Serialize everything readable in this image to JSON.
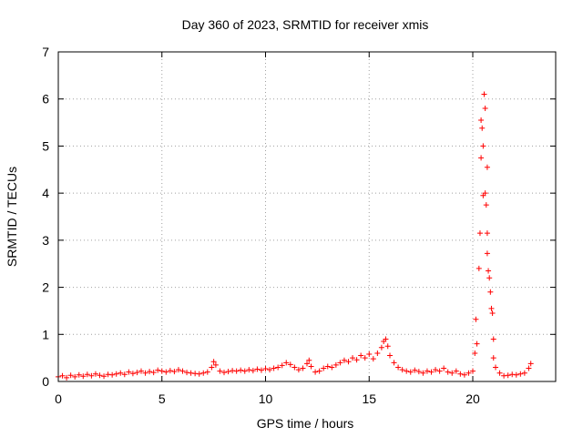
{
  "chart_data": {
    "type": "scatter",
    "title": "Day 360 of 2023, SRMTID for receiver xmis",
    "xlabel": "GPS time / hours",
    "ylabel": "SRMTID / TECUs",
    "xlim": [
      0,
      24
    ],
    "ylim": [
      0,
      7
    ],
    "xticks": [
      0,
      5,
      10,
      15,
      20
    ],
    "yticks": [
      0,
      1,
      2,
      3,
      4,
      5,
      6,
      7
    ],
    "grid": true,
    "marker": "plus",
    "color": "#ff0000",
    "series": [
      {
        "name": "SRMTID",
        "points": [
          [
            0.0,
            0.1
          ],
          [
            0.2,
            0.12
          ],
          [
            0.4,
            0.08
          ],
          [
            0.6,
            0.13
          ],
          [
            0.8,
            0.1
          ],
          [
            1.0,
            0.14
          ],
          [
            1.2,
            0.11
          ],
          [
            1.4,
            0.15
          ],
          [
            1.6,
            0.12
          ],
          [
            1.8,
            0.16
          ],
          [
            2.0,
            0.13
          ],
          [
            2.2,
            0.11
          ],
          [
            2.4,
            0.15
          ],
          [
            2.6,
            0.14
          ],
          [
            2.8,
            0.16
          ],
          [
            3.0,
            0.18
          ],
          [
            3.2,
            0.15
          ],
          [
            3.4,
            0.2
          ],
          [
            3.6,
            0.17
          ],
          [
            3.8,
            0.19
          ],
          [
            4.0,
            0.22
          ],
          [
            4.2,
            0.18
          ],
          [
            4.4,
            0.21
          ],
          [
            4.6,
            0.19
          ],
          [
            4.8,
            0.24
          ],
          [
            5.0,
            0.22
          ],
          [
            5.2,
            0.2
          ],
          [
            5.4,
            0.23
          ],
          [
            5.6,
            0.21
          ],
          [
            5.8,
            0.25
          ],
          [
            6.0,
            0.22
          ],
          [
            6.2,
            0.19
          ],
          [
            6.4,
            0.18
          ],
          [
            6.6,
            0.17
          ],
          [
            6.8,
            0.16
          ],
          [
            7.0,
            0.18
          ],
          [
            7.2,
            0.2
          ],
          [
            7.4,
            0.3
          ],
          [
            7.5,
            0.42
          ],
          [
            7.6,
            0.35
          ],
          [
            7.8,
            0.22
          ],
          [
            8.0,
            0.19
          ],
          [
            8.2,
            0.21
          ],
          [
            8.4,
            0.23
          ],
          [
            8.6,
            0.22
          ],
          [
            8.8,
            0.24
          ],
          [
            9.0,
            0.22
          ],
          [
            9.2,
            0.25
          ],
          [
            9.4,
            0.23
          ],
          [
            9.6,
            0.26
          ],
          [
            9.8,
            0.24
          ],
          [
            10.0,
            0.27
          ],
          [
            10.2,
            0.25
          ],
          [
            10.4,
            0.28
          ],
          [
            10.6,
            0.3
          ],
          [
            10.8,
            0.34
          ],
          [
            11.0,
            0.4
          ],
          [
            11.2,
            0.36
          ],
          [
            11.4,
            0.3
          ],
          [
            11.6,
            0.25
          ],
          [
            11.8,
            0.28
          ],
          [
            12.0,
            0.38
          ],
          [
            12.1,
            0.45
          ],
          [
            12.2,
            0.32
          ],
          [
            12.4,
            0.2
          ],
          [
            12.6,
            0.22
          ],
          [
            12.8,
            0.28
          ],
          [
            13.0,
            0.32
          ],
          [
            13.2,
            0.3
          ],
          [
            13.4,
            0.35
          ],
          [
            13.6,
            0.4
          ],
          [
            13.8,
            0.45
          ],
          [
            14.0,
            0.42
          ],
          [
            14.2,
            0.5
          ],
          [
            14.4,
            0.46
          ],
          [
            14.6,
            0.55
          ],
          [
            14.8,
            0.5
          ],
          [
            15.0,
            0.58
          ],
          [
            15.2,
            0.48
          ],
          [
            15.4,
            0.6
          ],
          [
            15.6,
            0.72
          ],
          [
            15.7,
            0.85
          ],
          [
            15.8,
            0.9
          ],
          [
            15.9,
            0.75
          ],
          [
            16.0,
            0.55
          ],
          [
            16.2,
            0.4
          ],
          [
            16.4,
            0.3
          ],
          [
            16.6,
            0.25
          ],
          [
            16.8,
            0.22
          ],
          [
            17.0,
            0.2
          ],
          [
            17.2,
            0.24
          ],
          [
            17.4,
            0.21
          ],
          [
            17.6,
            0.18
          ],
          [
            17.8,
            0.22
          ],
          [
            18.0,
            0.2
          ],
          [
            18.2,
            0.25
          ],
          [
            18.4,
            0.22
          ],
          [
            18.6,
            0.28
          ],
          [
            18.8,
            0.2
          ],
          [
            19.0,
            0.18
          ],
          [
            19.2,
            0.22
          ],
          [
            19.4,
            0.16
          ],
          [
            19.6,
            0.14
          ],
          [
            19.8,
            0.18
          ],
          [
            20.0,
            0.22
          ],
          [
            20.1,
            0.6
          ],
          [
            20.15,
            1.32
          ],
          [
            20.2,
            0.8
          ],
          [
            20.3,
            2.4
          ],
          [
            20.35,
            3.15
          ],
          [
            20.4,
            4.75
          ],
          [
            20.4,
            5.55
          ],
          [
            20.45,
            5.38
          ],
          [
            20.5,
            5.0
          ],
          [
            20.5,
            3.95
          ],
          [
            20.55,
            6.1
          ],
          [
            20.6,
            5.8
          ],
          [
            20.6,
            4.0
          ],
          [
            20.65,
            3.75
          ],
          [
            20.7,
            4.55
          ],
          [
            20.7,
            3.15
          ],
          [
            20.7,
            2.72
          ],
          [
            20.75,
            2.35
          ],
          [
            20.8,
            2.2
          ],
          [
            20.85,
            1.9
          ],
          [
            20.9,
            1.55
          ],
          [
            20.95,
            1.45
          ],
          [
            21.0,
            0.9
          ],
          [
            21.0,
            0.5
          ],
          [
            21.1,
            0.3
          ],
          [
            21.3,
            0.18
          ],
          [
            21.5,
            0.12
          ],
          [
            21.7,
            0.13
          ],
          [
            21.9,
            0.15
          ],
          [
            22.1,
            0.14
          ],
          [
            22.3,
            0.16
          ],
          [
            22.5,
            0.18
          ],
          [
            22.7,
            0.28
          ],
          [
            22.8,
            0.38
          ]
        ]
      }
    ]
  }
}
